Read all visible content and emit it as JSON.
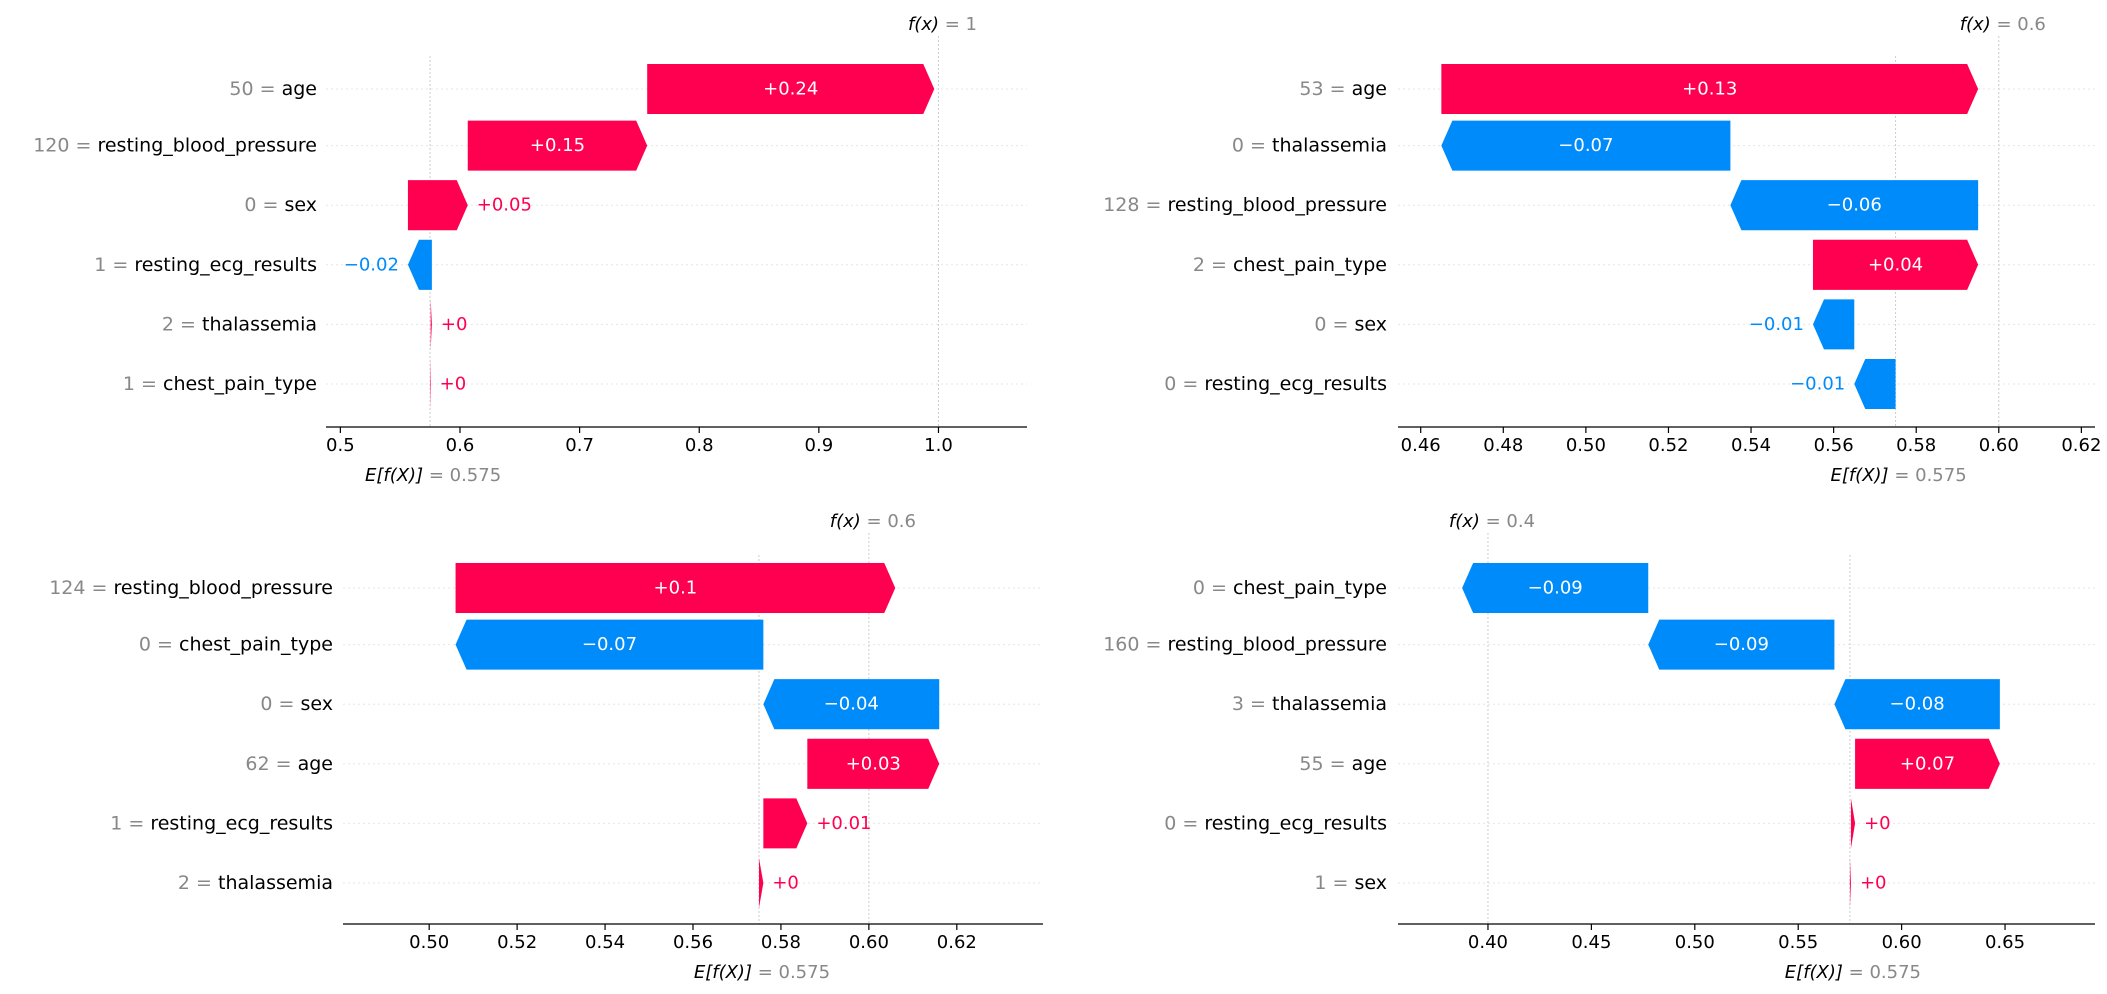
{
  "colors": {
    "positive": "#ff0051",
    "negative": "#008bfb",
    "text": "#000000",
    "muted": "#888888",
    "grid": "#cccccc"
  },
  "chart_data": [
    {
      "type": "waterfall",
      "base_value": 0.575,
      "base_label": "= 0.575",
      "fx_value": 1.0,
      "fx_label": "= 1",
      "xlim": [
        0.488,
        1.074
      ],
      "xticks": [
        0.5,
        0.6,
        0.7,
        0.8,
        0.9,
        1.0
      ],
      "xtick_labels": [
        "0.5",
        "0.6",
        "0.7",
        "0.8",
        "0.9",
        "1.0"
      ],
      "features": [
        {
          "value": "50",
          "name": "age",
          "contribution": 0.24,
          "label": "+0.24"
        },
        {
          "value": "120",
          "name": "resting_blood_pressure",
          "contribution": 0.15,
          "label": "+0.15"
        },
        {
          "value": "0",
          "name": "sex",
          "contribution": 0.05,
          "label": "+0.05"
        },
        {
          "value": "1",
          "name": "resting_ecg_results",
          "contribution": -0.02,
          "label": "−0.02"
        },
        {
          "value": "2",
          "name": "thalassemia",
          "contribution": 0.001,
          "label": "+0"
        },
        {
          "value": "1",
          "name": "chest_pain_type",
          "contribution": 0.0005,
          "label": "+0"
        }
      ]
    },
    {
      "type": "waterfall",
      "base_value": 0.575,
      "base_label": "= 0.575",
      "fx_value": 0.6,
      "fx_label": "= 0.6",
      "xlim": [
        0.4545,
        0.6233
      ],
      "xticks": [
        0.46,
        0.48,
        0.5,
        0.52,
        0.54,
        0.56,
        0.58,
        0.6,
        0.62
      ],
      "xtick_labels": [
        "0.46",
        "0.48",
        "0.50",
        "0.52",
        "0.54",
        "0.56",
        "0.58",
        "0.60",
        "0.62"
      ],
      "features": [
        {
          "value": "53",
          "name": "age",
          "contribution": 0.13,
          "label": "+0.13"
        },
        {
          "value": "0",
          "name": "thalassemia",
          "contribution": -0.07,
          "label": "−0.07"
        },
        {
          "value": "128",
          "name": "resting_blood_pressure",
          "contribution": -0.06,
          "label": "−0.06"
        },
        {
          "value": "2",
          "name": "chest_pain_type",
          "contribution": 0.04,
          "label": "+0.04"
        },
        {
          "value": "0",
          "name": "sex",
          "contribution": -0.01,
          "label": "−0.01"
        },
        {
          "value": "0",
          "name": "resting_ecg_results",
          "contribution": -0.01,
          "label": "−0.01"
        }
      ]
    },
    {
      "type": "waterfall",
      "base_value": 0.575,
      "base_label": "= 0.575",
      "fx_value": 0.6,
      "fx_label": "= 0.6",
      "xlim": [
        0.4804,
        0.6396
      ],
      "xticks": [
        0.5,
        0.52,
        0.54,
        0.56,
        0.58,
        0.6,
        0.62
      ],
      "xtick_labels": [
        "0.50",
        "0.52",
        "0.54",
        "0.56",
        "0.58",
        "0.60",
        "0.62"
      ],
      "features": [
        {
          "value": "124",
          "name": "resting_blood_pressure",
          "contribution": 0.1,
          "label": "+0.1"
        },
        {
          "value": "0",
          "name": "chest_pain_type",
          "contribution": -0.07,
          "label": "−0.07"
        },
        {
          "value": "0",
          "name": "sex",
          "contribution": -0.04,
          "label": "−0.04"
        },
        {
          "value": "62",
          "name": "age",
          "contribution": 0.03,
          "label": "+0.03"
        },
        {
          "value": "1",
          "name": "resting_ecg_results",
          "contribution": 0.01,
          "label": "+0.01"
        },
        {
          "value": "2",
          "name": "thalassemia",
          "contribution": 0.001,
          "label": "+0"
        }
      ]
    },
    {
      "type": "waterfall",
      "base_value": 0.575,
      "base_label": "= 0.575",
      "fx_value": 0.4,
      "fx_label": "= 0.4",
      "xlim": [
        0.3565,
        0.6935
      ],
      "xticks": [
        0.4,
        0.45,
        0.5,
        0.55,
        0.6,
        0.65
      ],
      "xtick_labels": [
        "0.40",
        "0.45",
        "0.50",
        "0.55",
        "0.60",
        "0.65"
      ],
      "features": [
        {
          "value": "0",
          "name": "chest_pain_type",
          "contribution": -0.09,
          "label": "−0.09"
        },
        {
          "value": "160",
          "name": "resting_blood_pressure",
          "contribution": -0.09,
          "label": "−0.09"
        },
        {
          "value": "3",
          "name": "thalassemia",
          "contribution": -0.08,
          "label": "−0.08"
        },
        {
          "value": "55",
          "name": "age",
          "contribution": 0.07,
          "label": "+0.07"
        },
        {
          "value": "0",
          "name": "resting_ecg_results",
          "contribution": 0.002,
          "label": "+0"
        },
        {
          "value": "1",
          "name": "sex",
          "contribution": 0.0005,
          "label": "+0"
        }
      ]
    }
  ]
}
